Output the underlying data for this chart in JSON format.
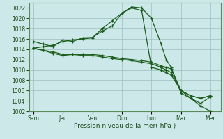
{
  "xlabel": "Pression niveau de la mer( hPa )",
  "bg_color": "#cce8e8",
  "grid_color": "#9dbfbf",
  "line_color": "#1a5c1a",
  "xtick_labels": [
    "Sam",
    "Jeu",
    "Ven",
    "Dim",
    "Lun",
    "Mar",
    "Mer"
  ],
  "xtick_positions": [
    0,
    1,
    2,
    3,
    4,
    5,
    6
  ],
  "ylim": [
    1002,
    1023
  ],
  "yticks": [
    1002,
    1004,
    1006,
    1008,
    1010,
    1012,
    1014,
    1016,
    1018,
    1020,
    1022
  ],
  "series": [
    {
      "x": [
        0,
        0.33,
        0.67,
        1.0,
        1.33,
        1.67,
        2.0,
        2.33,
        2.67,
        3.0,
        3.33,
        3.67,
        4.0,
        4.33,
        4.5,
        4.67,
        5.0,
        5.33,
        5.67,
        6.0
      ],
      "y": [
        1015.5,
        1015.0,
        1014.5,
        1015.8,
        1015.5,
        1016.2,
        1016.3,
        1017.5,
        1018.5,
        1021.0,
        1022.2,
        1022.0,
        1020.0,
        1015.0,
        1012.0,
        1010.5,
        1005.5,
        1004.5,
        1003.0,
        1002.0
      ]
    },
    {
      "x": [
        0,
        0.33,
        0.67,
        1.0,
        1.33,
        1.67,
        2.0,
        2.33,
        2.67,
        3.0,
        3.33,
        3.67,
        4.0,
        4.33,
        4.5,
        4.67,
        5.0,
        5.33,
        5.67,
        6.0
      ],
      "y": [
        1014.2,
        1014.5,
        1014.8,
        1015.5,
        1015.8,
        1016.0,
        1016.2,
        1018.0,
        1019.5,
        1021.0,
        1022.0,
        1021.5,
        1010.5,
        1010.0,
        1009.5,
        1009.0,
        1006.0,
        1005.0,
        1004.5,
        1005.0
      ]
    },
    {
      "x": [
        0,
        0.33,
        0.67,
        1.0,
        1.33,
        1.67,
        2.0,
        2.33,
        2.67,
        3.0,
        3.33,
        3.67,
        4.0,
        4.33,
        4.5,
        4.67,
        5.0,
        5.33,
        5.67,
        6.0
      ],
      "y": [
        1014.2,
        1013.8,
        1013.2,
        1012.8,
        1013.0,
        1013.0,
        1013.0,
        1012.8,
        1012.5,
        1012.2,
        1012.0,
        1011.8,
        1011.5,
        1010.8,
        1010.5,
        1010.2,
        1006.0,
        1005.0,
        1004.5,
        1005.0
      ]
    },
    {
      "x": [
        0,
        0.33,
        0.67,
        1.0,
        1.33,
        1.67,
        2.0,
        2.33,
        2.67,
        3.0,
        3.33,
        3.67,
        4.0,
        4.33,
        4.5,
        4.67,
        5.0,
        5.33,
        5.67,
        6.0
      ],
      "y": [
        1014.2,
        1013.8,
        1013.5,
        1013.0,
        1013.0,
        1012.8,
        1012.8,
        1012.5,
        1012.2,
        1012.0,
        1011.8,
        1011.5,
        1011.2,
        1010.5,
        1010.0,
        1009.5,
        1006.0,
        1004.5,
        1003.5,
        1004.8
      ]
    }
  ]
}
